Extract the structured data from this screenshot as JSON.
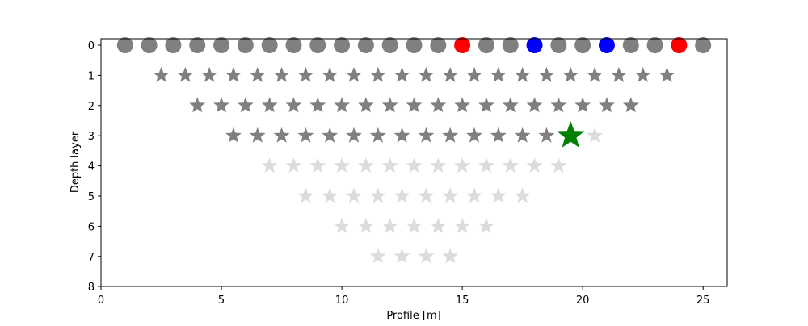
{
  "chart_data": {
    "type": "scatter",
    "title": "",
    "xlabel": "Profile [m]",
    "ylabel": "Depth layer",
    "xlim": [
      0,
      26
    ],
    "ylim": [
      8,
      0
    ],
    "y_inverted": true,
    "grid": false,
    "xticks": [
      "0",
      "5",
      "10",
      "15",
      "20",
      "25"
    ],
    "yticks": [
      "0",
      "1",
      "2",
      "3",
      "4",
      "5",
      "6",
      "7",
      "8"
    ],
    "colors": {
      "electrode": "#808080",
      "current_electrode": "#ff0000",
      "potential_electrode": "#0000ff",
      "measured_point": "#808080",
      "unmeasured_point": "#dcdcdc",
      "selected_point": "#008000"
    },
    "series": [
      {
        "marker": "circle",
        "color": "#808080",
        "points": [
          [
            1,
            0
          ],
          [
            2,
            0
          ],
          [
            3,
            0
          ],
          [
            4,
            0
          ],
          [
            5,
            0
          ],
          [
            6,
            0
          ],
          [
            7,
            0
          ],
          [
            8,
            0
          ],
          [
            9,
            0
          ],
          [
            10,
            0
          ],
          [
            11,
            0
          ],
          [
            12,
            0
          ],
          [
            13,
            0
          ],
          [
            14,
            0
          ],
          [
            16,
            0
          ],
          [
            17,
            0
          ],
          [
            19,
            0
          ],
          [
            20,
            0
          ],
          [
            22,
            0
          ],
          [
            23,
            0
          ],
          [
            25,
            0
          ]
        ]
      },
      {
        "marker": "circle",
        "color": "#ff0000",
        "points": [
          [
            15,
            0
          ],
          [
            24,
            0
          ]
        ]
      },
      {
        "marker": "circle",
        "color": "#0000ff",
        "points": [
          [
            18,
            0
          ],
          [
            21,
            0
          ]
        ]
      },
      {
        "marker": "star",
        "color": "#808080",
        "points": [
          [
            2.5,
            1
          ],
          [
            3.5,
            1
          ],
          [
            4.5,
            1
          ],
          [
            5.5,
            1
          ],
          [
            6.5,
            1
          ],
          [
            7.5,
            1
          ],
          [
            8.5,
            1
          ],
          [
            9.5,
            1
          ],
          [
            10.5,
            1
          ],
          [
            11.5,
            1
          ],
          [
            12.5,
            1
          ],
          [
            13.5,
            1
          ],
          [
            14.5,
            1
          ],
          [
            15.5,
            1
          ],
          [
            16.5,
            1
          ],
          [
            17.5,
            1
          ],
          [
            18.5,
            1
          ],
          [
            19.5,
            1
          ],
          [
            20.5,
            1
          ],
          [
            21.5,
            1
          ],
          [
            22.5,
            1
          ],
          [
            23.5,
            1
          ],
          [
            4,
            2
          ],
          [
            5,
            2
          ],
          [
            6,
            2
          ],
          [
            7,
            2
          ],
          [
            8,
            2
          ],
          [
            9,
            2
          ],
          [
            10,
            2
          ],
          [
            11,
            2
          ],
          [
            12,
            2
          ],
          [
            13,
            2
          ],
          [
            14,
            2
          ],
          [
            15,
            2
          ],
          [
            16,
            2
          ],
          [
            17,
            2
          ],
          [
            18,
            2
          ],
          [
            19,
            2
          ],
          [
            20,
            2
          ],
          [
            21,
            2
          ],
          [
            22,
            2
          ],
          [
            5.5,
            3
          ],
          [
            6.5,
            3
          ],
          [
            7.5,
            3
          ],
          [
            8.5,
            3
          ],
          [
            9.5,
            3
          ],
          [
            10.5,
            3
          ],
          [
            11.5,
            3
          ],
          [
            12.5,
            3
          ],
          [
            13.5,
            3
          ],
          [
            14.5,
            3
          ],
          [
            15.5,
            3
          ],
          [
            16.5,
            3
          ],
          [
            17.5,
            3
          ],
          [
            18.5,
            3
          ]
        ]
      },
      {
        "marker": "star",
        "color": "#dcdcdc",
        "points": [
          [
            20.5,
            3
          ],
          [
            7,
            4
          ],
          [
            8,
            4
          ],
          [
            9,
            4
          ],
          [
            10,
            4
          ],
          [
            11,
            4
          ],
          [
            12,
            4
          ],
          [
            13,
            4
          ],
          [
            14,
            4
          ],
          [
            15,
            4
          ],
          [
            16,
            4
          ],
          [
            17,
            4
          ],
          [
            18,
            4
          ],
          [
            19,
            4
          ],
          [
            8.5,
            5
          ],
          [
            9.5,
            5
          ],
          [
            10.5,
            5
          ],
          [
            11.5,
            5
          ],
          [
            12.5,
            5
          ],
          [
            13.5,
            5
          ],
          [
            14.5,
            5
          ],
          [
            15.5,
            5
          ],
          [
            16.5,
            5
          ],
          [
            17.5,
            5
          ],
          [
            10,
            6
          ],
          [
            11,
            6
          ],
          [
            12,
            6
          ],
          [
            13,
            6
          ],
          [
            14,
            6
          ],
          [
            15,
            6
          ],
          [
            16,
            6
          ],
          [
            11.5,
            7
          ],
          [
            12.5,
            7
          ],
          [
            13.5,
            7
          ],
          [
            14.5,
            7
          ]
        ]
      },
      {
        "marker": "star",
        "color": "#008000",
        "size": "large",
        "points": [
          [
            19.5,
            3
          ]
        ]
      }
    ]
  }
}
